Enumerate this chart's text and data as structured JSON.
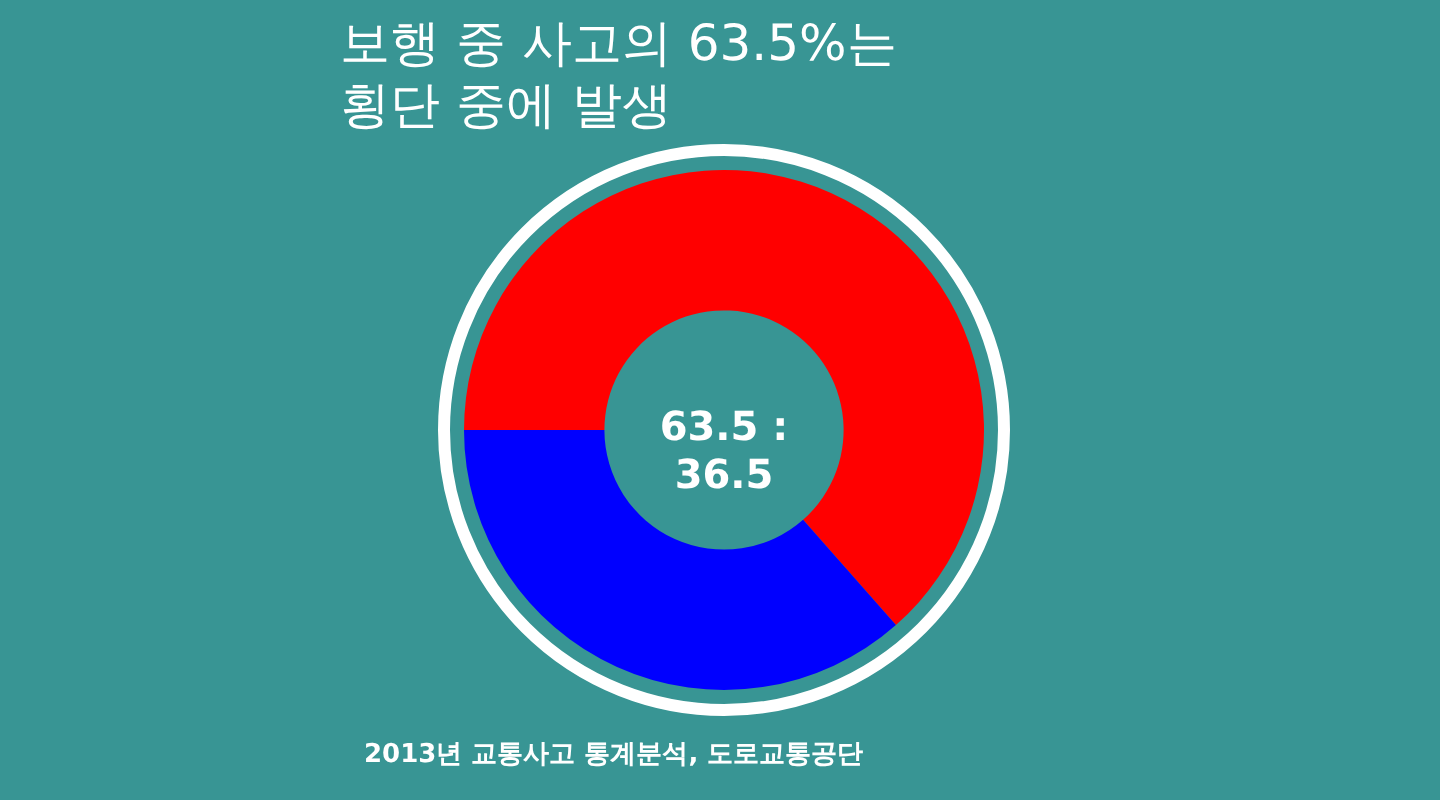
{
  "chart_data": {
    "type": "donut",
    "title": "보행 중 사고의 63.5%는\n횡단 중에 발생",
    "categories": [
      null,
      null
    ],
    "values": [
      63.5,
      36.5
    ],
    "colors": [
      "#ff0000",
      "#0000ff"
    ],
    "legend": false,
    "annotations": [
      "63.5 : 36.5",
      "2013년 교통사고 통계분석, 도로교통공단"
    ]
  }
}
